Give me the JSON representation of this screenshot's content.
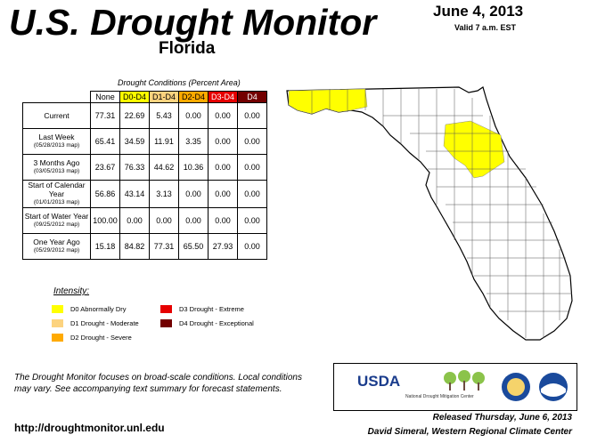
{
  "header": {
    "title": "U.S. Drought Monitor",
    "state": "Florida",
    "date": "June 4, 2013",
    "valid": "Valid 7 a.m. EST"
  },
  "table": {
    "caption": "Drought Conditions (Percent Area)",
    "columns": [
      "None",
      "D0-D4",
      "D1-D4",
      "D2-D4",
      "D3-D4",
      "D4"
    ],
    "column_colors": [
      "#ffffff",
      "#ffff00",
      "#fcd37f",
      "#ffaa00",
      "#e60000",
      "#730000"
    ],
    "rows": [
      {
        "label": "Current",
        "sub": "",
        "values": [
          "77.31",
          "22.69",
          "5.43",
          "0.00",
          "0.00",
          "0.00"
        ]
      },
      {
        "label": "Last Week",
        "sub": "(05/28/2013 map)",
        "values": [
          "65.41",
          "34.59",
          "11.91",
          "3.35",
          "0.00",
          "0.00"
        ]
      },
      {
        "label": "3 Months Ago",
        "sub": "(03/05/2013 map)",
        "values": [
          "23.67",
          "76.33",
          "44.62",
          "10.36",
          "0.00",
          "0.00"
        ]
      },
      {
        "label": "Start of Calendar Year",
        "sub": "(01/01/2013 map)",
        "values": [
          "56.86",
          "43.14",
          "3.13",
          "0.00",
          "0.00",
          "0.00"
        ]
      },
      {
        "label": "Start of Water Year",
        "sub": "(09/25/2012 map)",
        "values": [
          "100.00",
          "0.00",
          "0.00",
          "0.00",
          "0.00",
          "0.00"
        ]
      },
      {
        "label": "One Year Ago",
        "sub": "(05/29/2012 map)",
        "values": [
          "15.18",
          "84.82",
          "77.31",
          "65.50",
          "27.93",
          "0.00"
        ]
      }
    ]
  },
  "legend": {
    "title": "Intensity:",
    "items": [
      {
        "label": "D0 Abnormally Dry",
        "color": "#ffff00"
      },
      {
        "label": "D1 Drought - Moderate",
        "color": "#fcd37f"
      },
      {
        "label": "D2 Drought - Severe",
        "color": "#ffaa00"
      },
      {
        "label": "D3 Drought - Extreme",
        "color": "#e60000"
      },
      {
        "label": "D4 Drought - Exceptional",
        "color": "#730000"
      }
    ]
  },
  "note": "The Drought Monitor focuses on broad-scale conditions. Local conditions may vary. See accompanying text summary for forecast statements.",
  "url": "http://droughtmonitor.unl.edu",
  "logos": {
    "usda": "USDA",
    "ndmc": "National Drought Mitigation Center"
  },
  "released": "Released Thursday, June 6, 2013",
  "author": "David Simeral, Western Regional Climate Center"
}
